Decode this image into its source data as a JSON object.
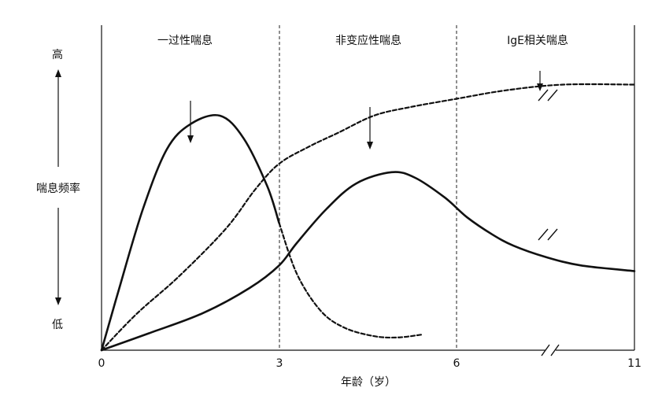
{
  "chart_data": {
    "type": "line",
    "title": "",
    "xlabel": "年龄（岁）",
    "ylabel": "喘息频率",
    "y_high_label": "高",
    "y_low_label": "低",
    "xlim": [
      0,
      11
    ],
    "ylim": [
      0,
      1
    ],
    "x_ticks": [
      {
        "value": 0,
        "label": "0"
      },
      {
        "value": 3,
        "label": "3"
      },
      {
        "value": 6,
        "label": "6"
      },
      {
        "value": 11,
        "label": "11"
      }
    ],
    "phases": [
      {
        "label": "一过性喘息",
        "x_start": 0,
        "x_end": 3
      },
      {
        "label": "非变应性喘息",
        "x_start": 3,
        "x_end": 6
      },
      {
        "label": "IgE相关喘息",
        "x_start": 6,
        "x_end": 11
      }
    ],
    "series": [
      {
        "style": "solid",
        "points": [
          [
            0,
            0
          ],
          [
            0.3,
            0.22
          ],
          [
            0.7,
            0.5
          ],
          [
            1.1,
            0.71
          ],
          [
            1.5,
            0.8
          ],
          [
            2.0,
            0.83
          ],
          [
            2.4,
            0.75
          ],
          [
            2.8,
            0.58
          ],
          [
            3.0,
            0.45
          ]
        ]
      },
      {
        "style": "dashed",
        "points": [
          [
            0,
            0
          ],
          [
            0.6,
            0.13
          ],
          [
            1.3,
            0.26
          ],
          [
            2.1,
            0.43
          ],
          [
            2.6,
            0.57
          ],
          [
            3.0,
            0.66
          ],
          [
            3.5,
            0.72
          ],
          [
            4.0,
            0.77
          ],
          [
            4.6,
            0.83
          ],
          [
            5.2,
            0.86
          ],
          [
            6.0,
            0.89
          ],
          [
            7.4,
            0.92
          ],
          [
            9.0,
            0.94
          ],
          [
            11.0,
            0.94
          ]
        ]
      },
      {
        "style": "dashed",
        "points": [
          [
            3.0,
            0.45
          ],
          [
            3.3,
            0.27
          ],
          [
            3.7,
            0.14
          ],
          [
            4.1,
            0.08
          ],
          [
            4.6,
            0.05
          ],
          [
            5.0,
            0.045
          ],
          [
            5.4,
            0.055
          ]
        ]
      },
      {
        "style": "solid",
        "points": [
          [
            0,
            0
          ],
          [
            0.8,
            0.06
          ],
          [
            1.7,
            0.13
          ],
          [
            2.5,
            0.22
          ],
          [
            3.0,
            0.3
          ],
          [
            3.3,
            0.38
          ],
          [
            3.8,
            0.5
          ],
          [
            4.3,
            0.59
          ],
          [
            4.9,
            0.63
          ],
          [
            5.3,
            0.61
          ],
          [
            5.8,
            0.54
          ],
          [
            6.3,
            0.47
          ],
          [
            7.0,
            0.41
          ],
          [
            7.6,
            0.37
          ],
          [
            8.5,
            0.33
          ],
          [
            9.5,
            0.3
          ],
          [
            11.0,
            0.28
          ]
        ]
      }
    ]
  }
}
